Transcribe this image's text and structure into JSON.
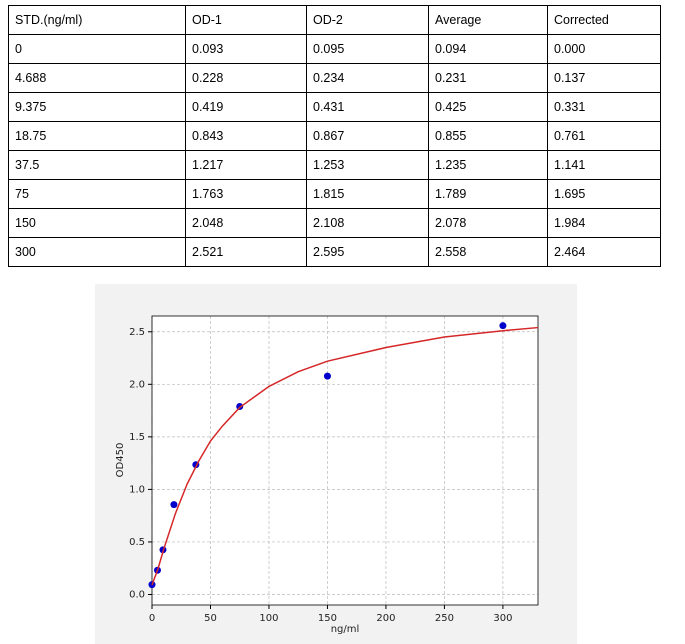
{
  "table": {
    "header": [
      "STD.(ng/ml)",
      "OD-1",
      "OD-2",
      "Average",
      "Corrected"
    ],
    "rows": [
      [
        "0",
        "0.093",
        "0.095",
        "0.094",
        "0.000"
      ],
      [
        "4.688",
        "0.228",
        "0.234",
        "0.231",
        "0.137"
      ],
      [
        "9.375",
        "0.419",
        "0.431",
        "0.425",
        "0.331"
      ],
      [
        "18.75",
        "0.843",
        "0.867",
        "0.855",
        "0.761"
      ],
      [
        "37.5",
        "1.217",
        "1.253",
        "1.235",
        "1.141"
      ],
      [
        "75",
        "1.763",
        "1.815",
        "1.789",
        "1.695"
      ],
      [
        "150",
        "2.048",
        "2.108",
        "2.078",
        "1.984"
      ],
      [
        "300",
        "2.521",
        "2.595",
        "2.558",
        "2.464"
      ]
    ]
  },
  "chart_data": {
    "type": "scatter",
    "x_label": "ng/ml",
    "y_label": "OD450",
    "xlim": [
      0,
      330
    ],
    "ylim": [
      -0.1,
      2.65
    ],
    "xticks": [
      0,
      50,
      100,
      150,
      200,
      250,
      300
    ],
    "yticks": [
      {
        "value": 0,
        "label": "0.0"
      },
      0.5,
      {
        "value": 1,
        "label": "1.0"
      },
      1.5,
      {
        "value": 2,
        "label": "2.0"
      },
      2.5
    ],
    "grid": true,
    "series": [
      {
        "kind": "points",
        "color": "#0000cc",
        "x": [
          0,
          4.688,
          9.375,
          18.75,
          37.5,
          75,
          150,
          300
        ],
        "values": [
          0.094,
          0.231,
          0.425,
          0.855,
          1.235,
          1.789,
          2.078,
          2.558
        ]
      },
      {
        "kind": "line",
        "color": "#d62728",
        "x": [
          0,
          5,
          10,
          20,
          30,
          40,
          50,
          60,
          75,
          100,
          125,
          150,
          200,
          250,
          300,
          330
        ],
        "values": [
          0.09,
          0.24,
          0.43,
          0.77,
          1.05,
          1.27,
          1.46,
          1.6,
          1.78,
          1.98,
          2.12,
          2.22,
          2.35,
          2.45,
          2.51,
          2.54
        ]
      }
    ]
  }
}
